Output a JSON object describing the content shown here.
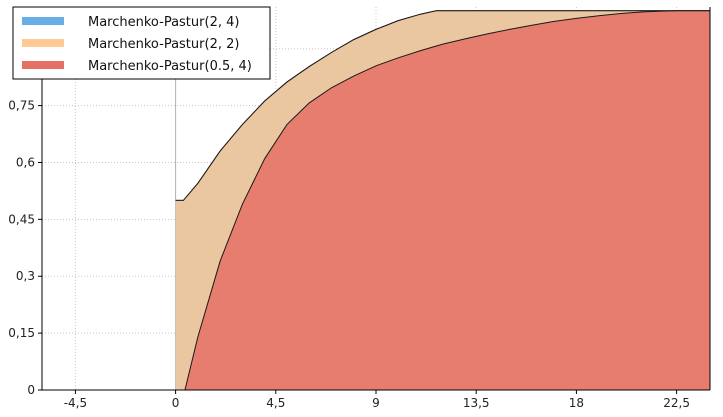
{
  "chart_data": {
    "type": "area",
    "title": "",
    "xlabel": "",
    "ylabel": "",
    "xlim": [
      -6,
      24
    ],
    "ylim": [
      0,
      1.01
    ],
    "x_ticks": [
      -4.5,
      0,
      4.5,
      9,
      13.5,
      18,
      22.5
    ],
    "x_tick_labels": [
      "-4,5",
      "0",
      "4,5",
      "9",
      "13,5",
      "18",
      "22,5"
    ],
    "y_ticks": [
      0,
      0.15,
      0.3,
      0.45,
      0.6,
      0.75,
      0.9
    ],
    "y_tick_labels": [
      "0",
      "0,15",
      "0,3",
      "0,45",
      "0,6",
      "0,75",
      "0,9"
    ],
    "grid": true,
    "legend_position": "top-left",
    "series": [
      {
        "name": "Marchenko-Pastur(2, 4)",
        "color": "#6aaee8",
        "x": [
          0,
          0.35,
          1.0,
          2.0,
          3.0,
          4.0,
          5.0,
          6.0,
          7.0,
          8.0,
          9.0,
          10.0,
          11.0,
          11.7,
          24.0
        ],
        "y": [
          0.5,
          0.5,
          0.545,
          0.63,
          0.7,
          0.762,
          0.812,
          0.853,
          0.89,
          0.924,
          0.951,
          0.974,
          0.991,
          1.0,
          1.0
        ]
      },
      {
        "name": "Marchenko-Pastur(2, 2)",
        "color": "#fec994",
        "x": [
          0,
          0.35,
          1.0,
          2.0,
          3.0,
          4.0,
          5.0,
          6.0,
          7.0,
          8.0,
          9.0,
          10.0,
          11.0,
          11.7,
          24.0
        ],
        "y": [
          0.5,
          0.5,
          0.545,
          0.63,
          0.7,
          0.762,
          0.812,
          0.853,
          0.89,
          0.924,
          0.951,
          0.974,
          0.991,
          1.0,
          1.0
        ]
      },
      {
        "name": "Marchenko-Pastur(0.5, 4)",
        "color": "#e57066",
        "x": [
          0.42,
          1,
          2,
          3,
          4,
          5,
          6,
          7,
          8,
          9,
          10,
          11,
          12,
          13,
          14,
          15,
          16,
          17,
          18,
          19,
          20,
          21,
          22,
          22.6,
          24
        ],
        "y": [
          0,
          0.14,
          0.34,
          0.49,
          0.61,
          0.7,
          0.757,
          0.797,
          0.828,
          0.855,
          0.876,
          0.895,
          0.912,
          0.926,
          0.939,
          0.951,
          0.962,
          0.972,
          0.98,
          0.987,
          0.993,
          0.997,
          0.9995,
          1.0,
          1.0
        ]
      }
    ]
  }
}
